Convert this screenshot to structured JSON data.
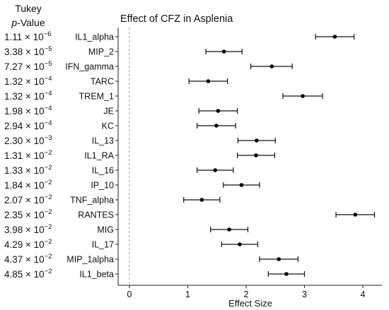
{
  "header": {
    "line1": "Tukey",
    "line2_italic": "p",
    "line2_rest": "-Value"
  },
  "chart_data": {
    "type": "forest",
    "title": "Effect of CFZ in Asplenia",
    "xlabel": "Effect Size",
    "xlim": [
      -0.1,
      4.35
    ],
    "xticks": [
      0,
      1,
      2,
      3,
      4
    ],
    "reference_line": 0,
    "grid": false,
    "categories": [
      "IL1_alpha",
      "MIP_2",
      "IFN_gamma",
      "TARC",
      "TREM_1",
      "JE",
      "KC",
      "IL_13",
      "IL1_RA",
      "IL_16",
      "IP_10",
      "TNF_alpha",
      "RANTES",
      "MIG",
      "IL_17",
      "MIP_1alpha",
      "IL1_beta"
    ],
    "p_values": [
      {
        "mantissa": "1.11",
        "exponent": "-6"
      },
      {
        "mantissa": "3.38",
        "exponent": "-5"
      },
      {
        "mantissa": "7.27",
        "exponent": "-5"
      },
      {
        "mantissa": "1.32",
        "exponent": "-4"
      },
      {
        "mantissa": "1.32",
        "exponent": "-4"
      },
      {
        "mantissa": "1.98",
        "exponent": "-4"
      },
      {
        "mantissa": "2.94",
        "exponent": "-4"
      },
      {
        "mantissa": "2.30",
        "exponent": "-3"
      },
      {
        "mantissa": "1.31",
        "exponent": "-2"
      },
      {
        "mantissa": "1.33",
        "exponent": "-2"
      },
      {
        "mantissa": "1.84",
        "exponent": "-2"
      },
      {
        "mantissa": "2.07",
        "exponent": "-2"
      },
      {
        "mantissa": "2.35",
        "exponent": "-2"
      },
      {
        "mantissa": "3.98",
        "exponent": "-2"
      },
      {
        "mantissa": "4.29",
        "exponent": "-2"
      },
      {
        "mantissa": "4.37",
        "exponent": "-2"
      },
      {
        "mantissa": "4.85",
        "exponent": "-2"
      }
    ],
    "estimates": [
      3.52,
      1.62,
      2.44,
      1.35,
      2.97,
      1.52,
      1.49,
      2.18,
      2.17,
      1.47,
      1.92,
      1.24,
      3.87,
      1.71,
      1.89,
      2.56,
      2.69
    ],
    "lower": [
      3.19,
      1.31,
      2.08,
      1.02,
      2.63,
      1.19,
      1.16,
      1.86,
      1.85,
      1.16,
      1.61,
      0.93,
      3.54,
      1.39,
      1.58,
      2.23,
      2.38
    ],
    "upper": [
      3.85,
      1.93,
      2.79,
      1.68,
      3.31,
      1.85,
      1.82,
      2.5,
      2.49,
      1.78,
      2.23,
      1.55,
      4.2,
      2.03,
      2.2,
      2.89,
      3.0
    ]
  }
}
